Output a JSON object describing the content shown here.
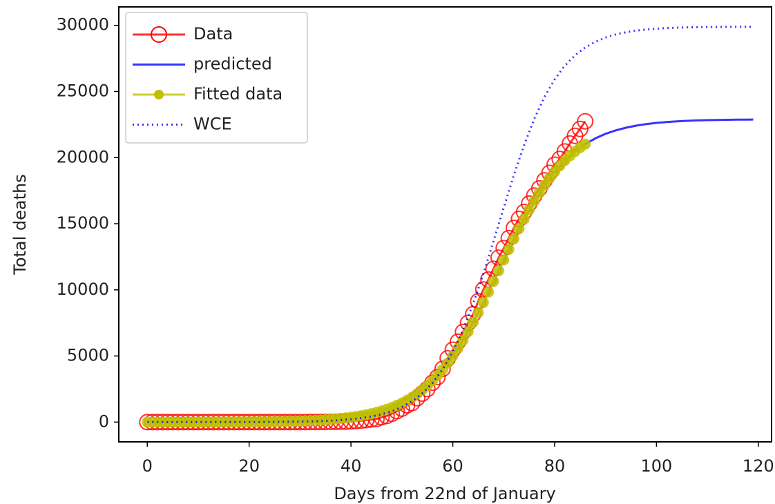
{
  "chart_data": {
    "type": "line",
    "x_label": "Days from 22nd of January",
    "y_label": "Total deaths",
    "xlim": [
      -5.6,
      122.6
    ],
    "ylim": [
      -1495,
      31395
    ],
    "xticks": [
      0,
      20,
      40,
      60,
      80,
      100,
      120
    ],
    "yticks": [
      0,
      5000,
      10000,
      15000,
      20000,
      25000,
      30000
    ],
    "legend": "upper left",
    "series": [
      {
        "name": "Data",
        "color": "#ff0000",
        "marker": "circle-open",
        "linestyle": "solid",
        "x": [
          0,
          1,
          2,
          3,
          4,
          5,
          6,
          7,
          8,
          9,
          10,
          11,
          12,
          13,
          14,
          15,
          16,
          17,
          18,
          19,
          20,
          21,
          22,
          23,
          24,
          25,
          26,
          27,
          28,
          29,
          30,
          31,
          32,
          33,
          34,
          35,
          36,
          37,
          38,
          39,
          40,
          41,
          42,
          43,
          44,
          45,
          46,
          47,
          48,
          49,
          50,
          51,
          52,
          53,
          54,
          55,
          56,
          57,
          58,
          59,
          60,
          61,
          62,
          63,
          64,
          65,
          66,
          67,
          68,
          69,
          70,
          71,
          72,
          73,
          74,
          75,
          76,
          77,
          78,
          79,
          80,
          81,
          82,
          83,
          84,
          85,
          86
        ],
        "values": [
          0,
          0,
          0,
          0,
          0,
          0,
          0,
          0,
          0,
          0,
          0,
          0,
          0,
          0,
          0,
          0,
          0,
          0,
          0,
          0,
          0,
          0,
          0,
          0,
          0,
          0,
          0,
          0,
          0,
          0,
          1,
          2,
          3,
          7,
          10,
          12,
          17,
          21,
          29,
          34,
          52,
          79,
          107,
          148,
          197,
          233,
          366,
          463,
          631,
          827,
          1016,
          1266,
          1441,
          1809,
          2158,
          2503,
          2978,
          3405,
          4032,
          4825,
          5476,
          6077,
          6820,
          7503,
          8165,
          9134,
          10023,
          10779,
          11591,
          12428,
          13155,
          13915,
          14681,
          15362,
          15887,
          16523,
          17127,
          17669,
          18279,
          18849,
          19468,
          19899,
          20465,
          21067,
          21645,
          22170,
          22745
        ]
      },
      {
        "name": "predicted",
        "color": "#0000ff",
        "marker": "none",
        "linestyle": "solid",
        "x": [
          0,
          2,
          4,
          6,
          8,
          10,
          12,
          14,
          16,
          18,
          20,
          22,
          24,
          26,
          28,
          30,
          32,
          34,
          36,
          38,
          40,
          42,
          44,
          46,
          48,
          50,
          52,
          54,
          56,
          58,
          60,
          62,
          64,
          66,
          68,
          70,
          72,
          74,
          76,
          78,
          80,
          82,
          84,
          86,
          88,
          90,
          92,
          94,
          96,
          98,
          100,
          102,
          104,
          106,
          108,
          110,
          112,
          114,
          116,
          118,
          119
        ],
        "values": [
          1,
          2,
          2,
          3,
          4,
          5,
          7,
          9,
          12,
          16,
          22,
          29,
          38,
          51,
          68,
          90,
          119,
          158,
          209,
          277,
          366,
          484,
          639,
          841,
          1104,
          1444,
          1879,
          2431,
          3121,
          3969,
          4989,
          6185,
          7547,
          9047,
          10639,
          12262,
          13853,
          15353,
          16715,
          17910,
          18929,
          19778,
          20468,
          21021,
          21456,
          21797,
          22062,
          22261,
          22416,
          22533,
          22622,
          22691,
          22741,
          22781,
          22811,
          22832,
          22850,
          22861,
          22870,
          22877,
          22882
        ]
      },
      {
        "name": "Fitted data",
        "color": "#bfbf00",
        "marker": "dot",
        "linestyle": "solid",
        "x": [
          0,
          1,
          2,
          3,
          4,
          5,
          6,
          7,
          8,
          9,
          10,
          11,
          12,
          13,
          14,
          15,
          16,
          17,
          18,
          19,
          20,
          21,
          22,
          23,
          24,
          25,
          26,
          27,
          28,
          29,
          30,
          31,
          32,
          33,
          34,
          35,
          36,
          37,
          38,
          39,
          40,
          41,
          42,
          43,
          44,
          45,
          46,
          47,
          48,
          49,
          50,
          51,
          52,
          53,
          54,
          55,
          56,
          57,
          58,
          59,
          60,
          61,
          62,
          63,
          64,
          65,
          66,
          67,
          68,
          69,
          70,
          71,
          72,
          73,
          74,
          75,
          76,
          77,
          78,
          79,
          80,
          81,
          82,
          83,
          84,
          85,
          86
        ],
        "values": [
          1,
          1,
          2,
          2,
          2,
          3,
          3,
          3,
          4,
          5,
          5,
          6,
          7,
          8,
          9,
          11,
          12,
          14,
          16,
          19,
          22,
          25,
          29,
          33,
          38,
          44,
          51,
          59,
          68,
          78,
          90,
          103,
          119,
          137,
          158,
          182,
          209,
          241,
          277,
          319,
          366,
          421,
          484,
          556,
          639,
          733,
          841,
          964,
          1104,
          1263,
          1444,
          1648,
          1879,
          2139,
          2431,
          2758,
          3121,
          3524,
          3969,
          4457,
          4989,
          5565,
          6185,
          6846,
          7547,
          8282,
          9047,
          9835,
          10639,
          11450,
          12262,
          13064,
          13853,
          14617,
          15353,
          16052,
          16715,
          17334,
          17910,
          18443,
          18929,
          19374,
          19778,
          20141,
          20468,
          20760,
          21021
        ]
      },
      {
        "name": "WCE",
        "color": "#0000ff",
        "marker": "none",
        "linestyle": "dotted",
        "x": [
          0,
          2,
          4,
          6,
          8,
          10,
          12,
          14,
          16,
          18,
          20,
          22,
          24,
          26,
          28,
          30,
          32,
          34,
          36,
          38,
          40,
          42,
          44,
          46,
          48,
          50,
          52,
          54,
          56,
          58,
          60,
          62,
          64,
          66,
          68,
          70,
          72,
          74,
          76,
          78,
          80,
          82,
          84,
          86,
          88,
          90,
          92,
          94,
          96,
          98,
          100,
          102,
          104,
          106,
          108,
          110,
          112,
          114,
          116,
          118,
          119
        ],
        "values": [
          0,
          0,
          0,
          1,
          1,
          1,
          2,
          3,
          4,
          5,
          7,
          10,
          14,
          20,
          28,
          39,
          55,
          78,
          109,
          153,
          215,
          301,
          421,
          587,
          819,
          1138,
          1574,
          2165,
          2955,
          3992,
          5320,
          6974,
          8952,
          11219,
          13684,
          16215,
          18684,
          20947,
          22926,
          24579,
          25910,
          26946,
          27734,
          28325,
          28761,
          29080,
          29314,
          29478,
          29598,
          29686,
          29748,
          29790,
          29822,
          29843,
          29861,
          29873,
          29879,
          29885,
          29891,
          29894,
          29895
        ]
      }
    ]
  }
}
